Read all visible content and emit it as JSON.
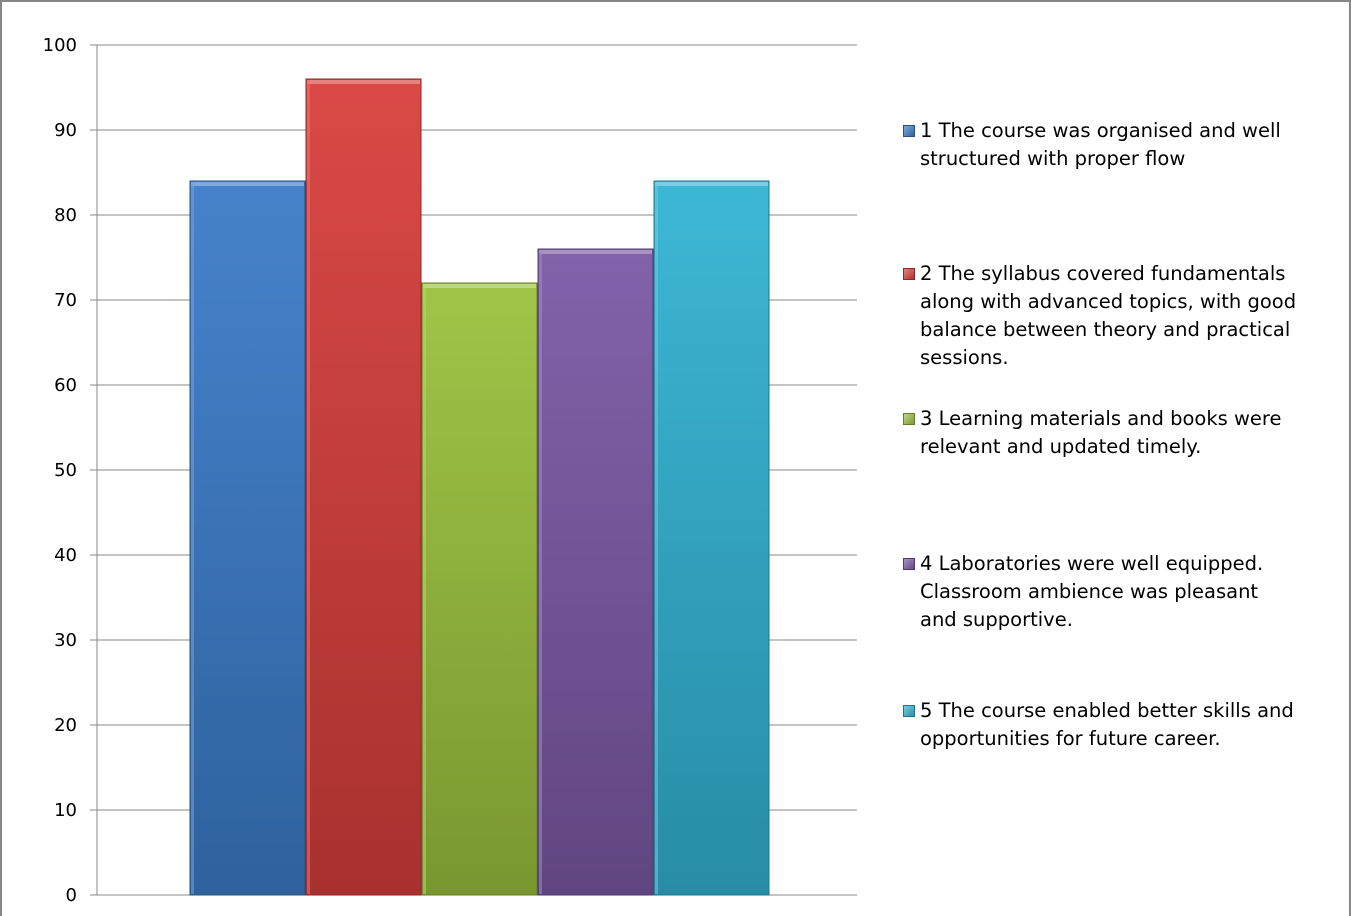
{
  "chart_data": {
    "type": "bar",
    "categories": [
      "1 The course was organised and well\nstructured with proper flow",
      "2 The syllabus covered fundamentals\nalong with advanced topics, with good\nbalance between theory and practical\nsessions.",
      "3 Learning materials and books were\nrelevant and updated timely.",
      "4 Laboratories were well equipped.\nClassroom ambience was pleasant\nand supportive.",
      "5 The course enabled better skills and\nopportunities for future career."
    ],
    "values": [
      84,
      96,
      72,
      76,
      84
    ],
    "colors": [
      "#3c7cc9",
      "#d83f3c",
      "#9bc23e",
      "#7b5aa6",
      "#33b3d4"
    ],
    "ylim": [
      0,
      100
    ],
    "yticks": [
      "0",
      "10",
      "20",
      "30",
      "40",
      "50",
      "60",
      "70",
      "80",
      "90",
      "100"
    ],
    "grid": true,
    "legend_position": "right",
    "title": "",
    "xlabel": "",
    "ylabel": ""
  }
}
